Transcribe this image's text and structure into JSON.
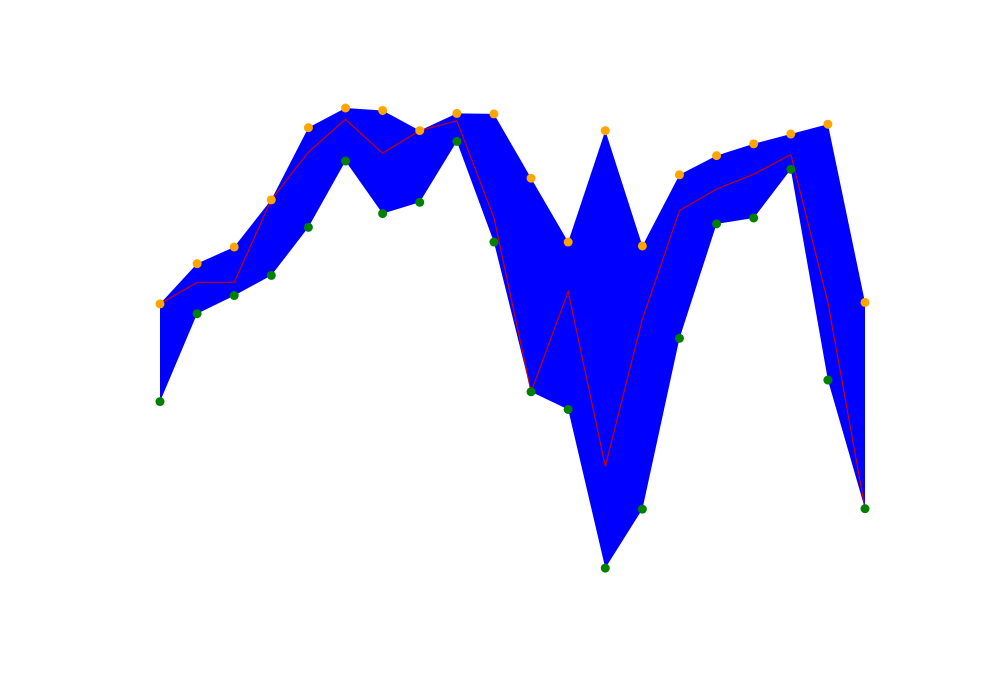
{
  "chart_data": {
    "type": "area",
    "title": "",
    "xlabel": "",
    "ylabel": "",
    "axes_visible": false,
    "grid": false,
    "x": [
      0,
      1,
      2,
      3,
      4,
      5,
      6,
      7,
      8,
      9,
      10,
      11,
      12,
      13,
      14,
      15,
      16,
      17,
      18,
      19
    ],
    "series": [
      {
        "role": "upper",
        "values": [
          0.601,
          0.683,
          0.717,
          0.813,
          0.96,
          1.0,
          0.995,
          0.954,
          0.989,
          0.988,
          0.857,
          0.727,
          0.954,
          0.719,
          0.864,
          0.903,
          0.927,
          0.947,
          0.967,
          0.604
        ]
      },
      {
        "role": "lower",
        "values": [
          0.402,
          0.581,
          0.618,
          0.659,
          0.757,
          0.892,
          0.785,
          0.808,
          0.932,
          0.727,
          0.422,
          0.386,
          0.063,
          0.183,
          0.531,
          0.764,
          0.776,
          0.875,
          0.446,
          0.184
        ]
      },
      {
        "role": "middle",
        "values": [
          0.601,
          0.645,
          0.645,
          0.813,
          0.91,
          0.977,
          0.908,
          0.954,
          0.974,
          0.777,
          0.422,
          0.626,
          0.27,
          0.57,
          0.791,
          0.835,
          0.865,
          0.905,
          0.604,
          0.184
        ]
      }
    ],
    "colors": {
      "fill": "#0000ff",
      "middle_line": "#cc0000",
      "upper_markers": "#ffa500",
      "lower_markers": "#008000"
    },
    "xlim": [
      0,
      19
    ],
    "ylim": [
      0,
      1
    ]
  }
}
